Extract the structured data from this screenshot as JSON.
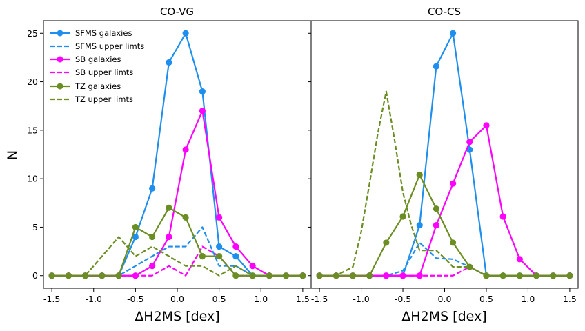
{
  "figure": {
    "ylabel": "N"
  },
  "chart_data": [
    {
      "type": "line",
      "title": "CO-VG",
      "xlabel": "ΔH2MS [dex]",
      "ylabel": "N",
      "xlim": [
        -1.6,
        1.6
      ],
      "ylim": [
        -1.3,
        26.3
      ],
      "xticks": [
        "-1.5",
        "-1.0",
        "-0.5",
        "0.0",
        "0.5",
        "1.0",
        "1.5"
      ],
      "xtick_values": [
        -1.5,
        -1.0,
        -0.5,
        0.0,
        0.5,
        1.0,
        1.5
      ],
      "yticks": [
        "0",
        "5",
        "10",
        "15",
        "20",
        "25"
      ],
      "ytick_values": [
        0,
        5,
        10,
        15,
        20,
        25
      ],
      "legend_position": "top-left",
      "series": [
        {
          "name": "SFMS galaxies",
          "color": "#1f8fef",
          "style": "solid",
          "markers": true,
          "x": [
            -1.5,
            -1.3,
            -1.1,
            -0.9,
            -0.7,
            -0.5,
            -0.3,
            -0.1,
            0.1,
            0.3,
            0.5,
            0.7,
            0.9,
            1.1,
            1.3,
            1.5
          ],
          "y": [
            0,
            0,
            0,
            0,
            0,
            4,
            9,
            22,
            25,
            19,
            3,
            2,
            0,
            0,
            0,
            0
          ]
        },
        {
          "name": "SFMS upper limts",
          "color": "#1f8fef",
          "style": "dashed",
          "markers": false,
          "x": [
            -1.5,
            -1.3,
            -1.1,
            -0.9,
            -0.7,
            -0.5,
            -0.3,
            -0.1,
            0.1,
            0.3,
            0.5,
            0.7,
            0.9,
            1.1,
            1.3,
            1.5
          ],
          "y": [
            0,
            0,
            0,
            0,
            0,
            1,
            2,
            3,
            3,
            5,
            1,
            1,
            0,
            0,
            0,
            0
          ]
        },
        {
          "name": "SB galaxies",
          "color": "#ff00ff",
          "style": "solid",
          "markers": true,
          "x": [
            -1.5,
            -1.3,
            -1.1,
            -0.9,
            -0.7,
            -0.5,
            -0.3,
            -0.1,
            0.1,
            0.3,
            0.5,
            0.7,
            0.9,
            1.1,
            1.3,
            1.5
          ],
          "y": [
            0,
            0,
            0,
            0,
            0,
            0,
            1,
            4,
            13,
            17,
            6,
            3,
            1,
            0,
            0,
            0
          ]
        },
        {
          "name": "SB upper limts",
          "color": "#ff00ff",
          "style": "dashed",
          "markers": false,
          "x": [
            -1.5,
            -1.3,
            -1.1,
            -0.9,
            -0.7,
            -0.5,
            -0.3,
            -0.1,
            0.1,
            0.3,
            0.5,
            0.7,
            0.9,
            1.1,
            1.3,
            1.5
          ],
          "y": [
            0,
            0,
            0,
            0,
            0,
            0,
            0,
            1,
            0,
            3,
            2,
            0,
            0,
            0,
            0,
            0
          ]
        },
        {
          "name": "TZ galaxies",
          "color": "#6b8e23",
          "style": "solid",
          "markers": true,
          "x": [
            -1.5,
            -1.3,
            -1.1,
            -0.9,
            -0.7,
            -0.5,
            -0.3,
            -0.1,
            0.1,
            0.3,
            0.5,
            0.7,
            0.9,
            1.1,
            1.3,
            1.5
          ],
          "y": [
            0,
            0,
            0,
            0,
            0,
            5,
            4,
            7,
            6,
            2,
            2,
            0,
            0,
            0,
            0,
            0
          ]
        },
        {
          "name": "TZ upper limts",
          "color": "#6b8e23",
          "style": "dashed",
          "markers": false,
          "x": [
            -1.5,
            -1.3,
            -1.1,
            -0.9,
            -0.7,
            -0.5,
            -0.3,
            -0.1,
            0.1,
            0.3,
            0.5,
            0.7,
            0.9,
            1.1,
            1.3,
            1.5
          ],
          "y": [
            0,
            0,
            0,
            2,
            4,
            2,
            3,
            2,
            1,
            1,
            0,
            1,
            0,
            0,
            0,
            0
          ]
        }
      ]
    },
    {
      "type": "line",
      "title": "CO-CS",
      "xlabel": "ΔH2MS [dex]",
      "xlim": [
        -1.6,
        1.6
      ],
      "ylim": [
        -1.3,
        26.3
      ],
      "xticks": [
        "-1.5",
        "-1.0",
        "-0.5",
        "0.0",
        "0.5",
        "1.0",
        "1.5"
      ],
      "xtick_values": [
        -1.5,
        -1.0,
        -0.5,
        0.0,
        0.5,
        1.0,
        1.5
      ],
      "ytick_values": [
        0,
        5,
        10,
        15,
        20,
        25
      ],
      "series": [
        {
          "color": "#1f8fef",
          "style": "solid",
          "markers": true,
          "x": [
            -1.5,
            -1.3,
            -1.1,
            -0.9,
            -0.7,
            -0.5,
            -0.3,
            -0.1,
            0.1,
            0.3,
            0.5,
            0.7,
            0.9,
            1.1,
            1.3,
            1.5
          ],
          "y": [
            0,
            0,
            0,
            0,
            0,
            0,
            5.2,
            21.6,
            25,
            13,
            0,
            0,
            0,
            0,
            0,
            0
          ]
        },
        {
          "color": "#1f8fef",
          "style": "dashed",
          "markers": false,
          "x": [
            -1.5,
            -1.3,
            -1.1,
            -0.9,
            -0.7,
            -0.5,
            -0.3,
            -0.1,
            0.1,
            0.3,
            0.5,
            0.7,
            0.9,
            1.1,
            1.3,
            1.5
          ],
          "y": [
            0,
            0,
            0,
            0,
            0,
            0.5,
            3.4,
            1.8,
            1.7,
            0.9,
            0,
            0,
            0,
            0,
            0,
            0
          ]
        },
        {
          "color": "#ff00ff",
          "style": "solid",
          "markers": true,
          "x": [
            -1.5,
            -1.3,
            -1.1,
            -0.9,
            -0.7,
            -0.5,
            -0.3,
            -0.1,
            0.1,
            0.3,
            0.5,
            0.7,
            0.9,
            1.1,
            1.3,
            1.5
          ],
          "y": [
            0,
            0,
            0,
            0,
            0,
            0,
            0,
            5.2,
            9.5,
            13.8,
            15.5,
            6.1,
            1.7,
            0,
            0,
            0
          ]
        },
        {
          "color": "#ff00ff",
          "style": "dashed",
          "markers": false,
          "x": [
            -1.5,
            -1.3,
            -1.1,
            -0.9,
            -0.7,
            -0.5,
            -0.3,
            -0.1,
            0.1,
            0.3,
            0.5,
            0.7,
            0.9,
            1.1,
            1.3,
            1.5
          ],
          "y": [
            0,
            0,
            0,
            0,
            0,
            0,
            0,
            0,
            0,
            0.9,
            0,
            0,
            0,
            0,
            0,
            0
          ]
        },
        {
          "color": "#6b8e23",
          "style": "solid",
          "markers": true,
          "x": [
            -1.5,
            -1.3,
            -1.1,
            -0.9,
            -0.7,
            -0.5,
            -0.3,
            -0.1,
            0.1,
            0.3,
            0.5,
            0.7,
            0.9,
            1.1,
            1.3,
            1.5
          ],
          "y": [
            0,
            0,
            0,
            0,
            3.4,
            6.1,
            10.4,
            6.9,
            3.4,
            0.9,
            0,
            0,
            0,
            0,
            0,
            0
          ]
        },
        {
          "color": "#6b8e23",
          "style": "dashed",
          "markers": false,
          "x": [
            -1.5,
            -1.3,
            -1.1,
            -1.0,
            -0.9,
            -0.8,
            -0.7,
            -0.6,
            -0.5,
            -0.4,
            -0.3,
            -0.2,
            -0.1,
            0.0,
            0.1,
            0.2,
            0.3,
            0.5,
            0.7,
            0.9,
            1.1,
            1.3,
            1.5
          ],
          "y": [
            0,
            0,
            0.9,
            4.5,
            9.5,
            14.7,
            19,
            14,
            8.6,
            5.2,
            2.6,
            2.6,
            2.6,
            1.8,
            0.9,
            0.9,
            0.9,
            0,
            0,
            0,
            0,
            0,
            0
          ]
        }
      ]
    }
  ]
}
